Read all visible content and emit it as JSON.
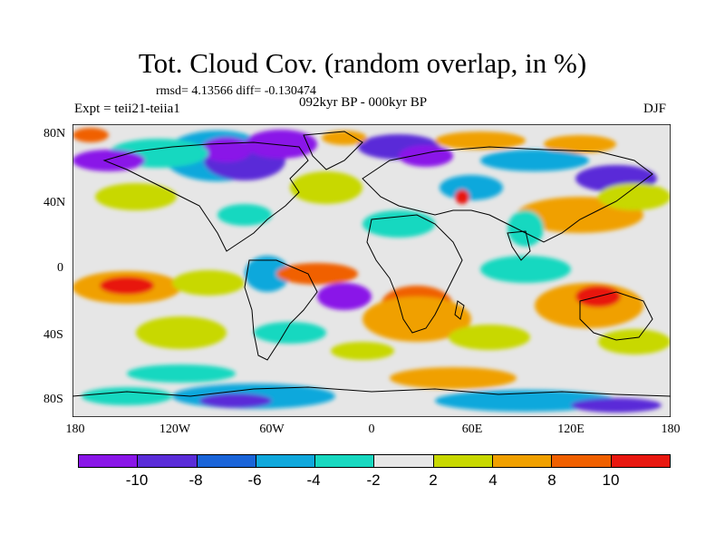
{
  "title": "Tot. Cloud Cov. (random overlap, in %)",
  "stats": "rmsd= 4.13566 diff= -0.130474",
  "expt": "Expt = teii21-teiia1",
  "period": "092kyr BP - 000kyr BP",
  "season": "DJF",
  "y_axis_labels": [
    "80N",
    "40N",
    "0",
    "40S",
    "80S"
  ],
  "x_axis_labels": [
    "180",
    "120W",
    "60W",
    "0",
    "60E",
    "120E",
    "180"
  ],
  "colorbar": {
    "labels": [
      "-10",
      "-8",
      "-6",
      "-4",
      "-2",
      "2",
      "4",
      "8",
      "10"
    ],
    "colors": [
      "#8a16e8",
      "#5a2cd8",
      "#1a64d8",
      "#10a8dc",
      "#18d8c0",
      "#e6e6e6",
      "#c8d800",
      "#f0a000",
      "#f06000",
      "#e81810"
    ]
  }
}
